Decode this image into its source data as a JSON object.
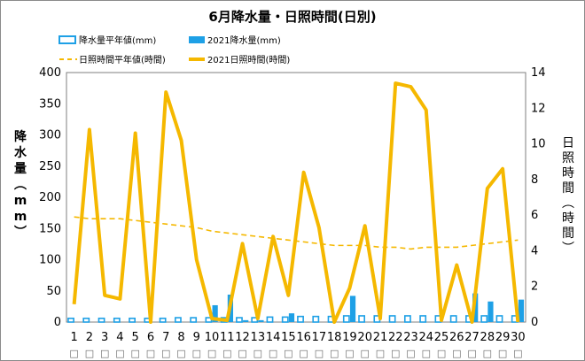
{
  "chart_data": {
    "type": "bar+line",
    "title": "6月降水量・日照時間(日別)",
    "categories": [
      "1",
      "2",
      "3",
      "4",
      "5",
      "6",
      "7",
      "8",
      "9",
      "10",
      "11",
      "12",
      "13",
      "14",
      "15",
      "16",
      "17",
      "18",
      "19",
      "20",
      "21",
      "22",
      "23",
      "24",
      "25",
      "26",
      "27",
      "28",
      "29",
      "30"
    ],
    "weekday_glyphs": [
      "□",
      "□",
      "□",
      "□",
      "□",
      "□",
      "□",
      "□",
      "□",
      "□",
      "□",
      "□",
      "□",
      "□",
      "□",
      "□",
      "□",
      "□",
      "□",
      "□",
      "□",
      "□",
      "□",
      "□",
      "□",
      "□",
      "□",
      "□",
      "□",
      "□"
    ],
    "left_axis": {
      "label_chars": [
        "降",
        "水",
        "量",
        "︵",
        "m",
        "m",
        "︶"
      ],
      "range": [
        0,
        400
      ],
      "ticks": [
        "0",
        "50",
        "100",
        "150",
        "200",
        "250",
        "300",
        "350",
        "400"
      ]
    },
    "right_axis": {
      "label_chars": [
        "日",
        "照",
        "時",
        "間",
        "︵",
        "時",
        "間",
        "︶"
      ],
      "range": [
        0,
        14
      ],
      "ticks": [
        "0",
        "2",
        "4",
        "6",
        "8",
        "10",
        "12",
        "14"
      ]
    },
    "series": [
      {
        "name": "降水量平年値(mm)",
        "type": "bar-outline",
        "axis": "left",
        "color": "#1ea0e6",
        "values": [
          6,
          6,
          6,
          6,
          6,
          6,
          6,
          7,
          7,
          7,
          7,
          7,
          7,
          8,
          8,
          9,
          9,
          9,
          10,
          10,
          10,
          10,
          10,
          10,
          10,
          10,
          10,
          10,
          10,
          10
        ]
      },
      {
        "name": "2021降水量(mm)",
        "type": "bar",
        "axis": "left",
        "color": "#1ea0e6",
        "values": [
          0,
          0,
          0,
          0,
          0,
          0,
          0,
          0,
          0,
          27,
          44,
          3,
          3,
          0,
          14,
          0,
          0,
          0,
          42,
          0,
          0,
          0,
          0,
          0,
          0,
          0,
          46,
          33,
          0,
          36
        ]
      },
      {
        "name": "日照時間平年値(時間)",
        "type": "dashed-line",
        "axis": "right",
        "color": "#f5b800",
        "values": [
          5.9,
          5.8,
          5.8,
          5.8,
          5.7,
          5.6,
          5.5,
          5.4,
          5.3,
          5.1,
          5.0,
          4.9,
          4.8,
          4.7,
          4.6,
          4.5,
          4.4,
          4.3,
          4.3,
          4.3,
          4.2,
          4.2,
          4.1,
          4.2,
          4.2,
          4.2,
          4.3,
          4.4,
          4.5,
          4.6
        ]
      },
      {
        "name": "2021日照時間(時間)",
        "type": "line",
        "axis": "right",
        "color": "#f5b800",
        "values": [
          1.0,
          10.8,
          1.5,
          1.3,
          10.6,
          0.0,
          12.9,
          10.2,
          3.5,
          0.2,
          0.1,
          4.4,
          0.2,
          4.8,
          1.5,
          8.4,
          5.3,
          0.0,
          1.9,
          5.4,
          0.2,
          13.4,
          13.2,
          11.9,
          0.1,
          3.2,
          0.0,
          7.5,
          8.6,
          0.0
        ]
      }
    ]
  }
}
